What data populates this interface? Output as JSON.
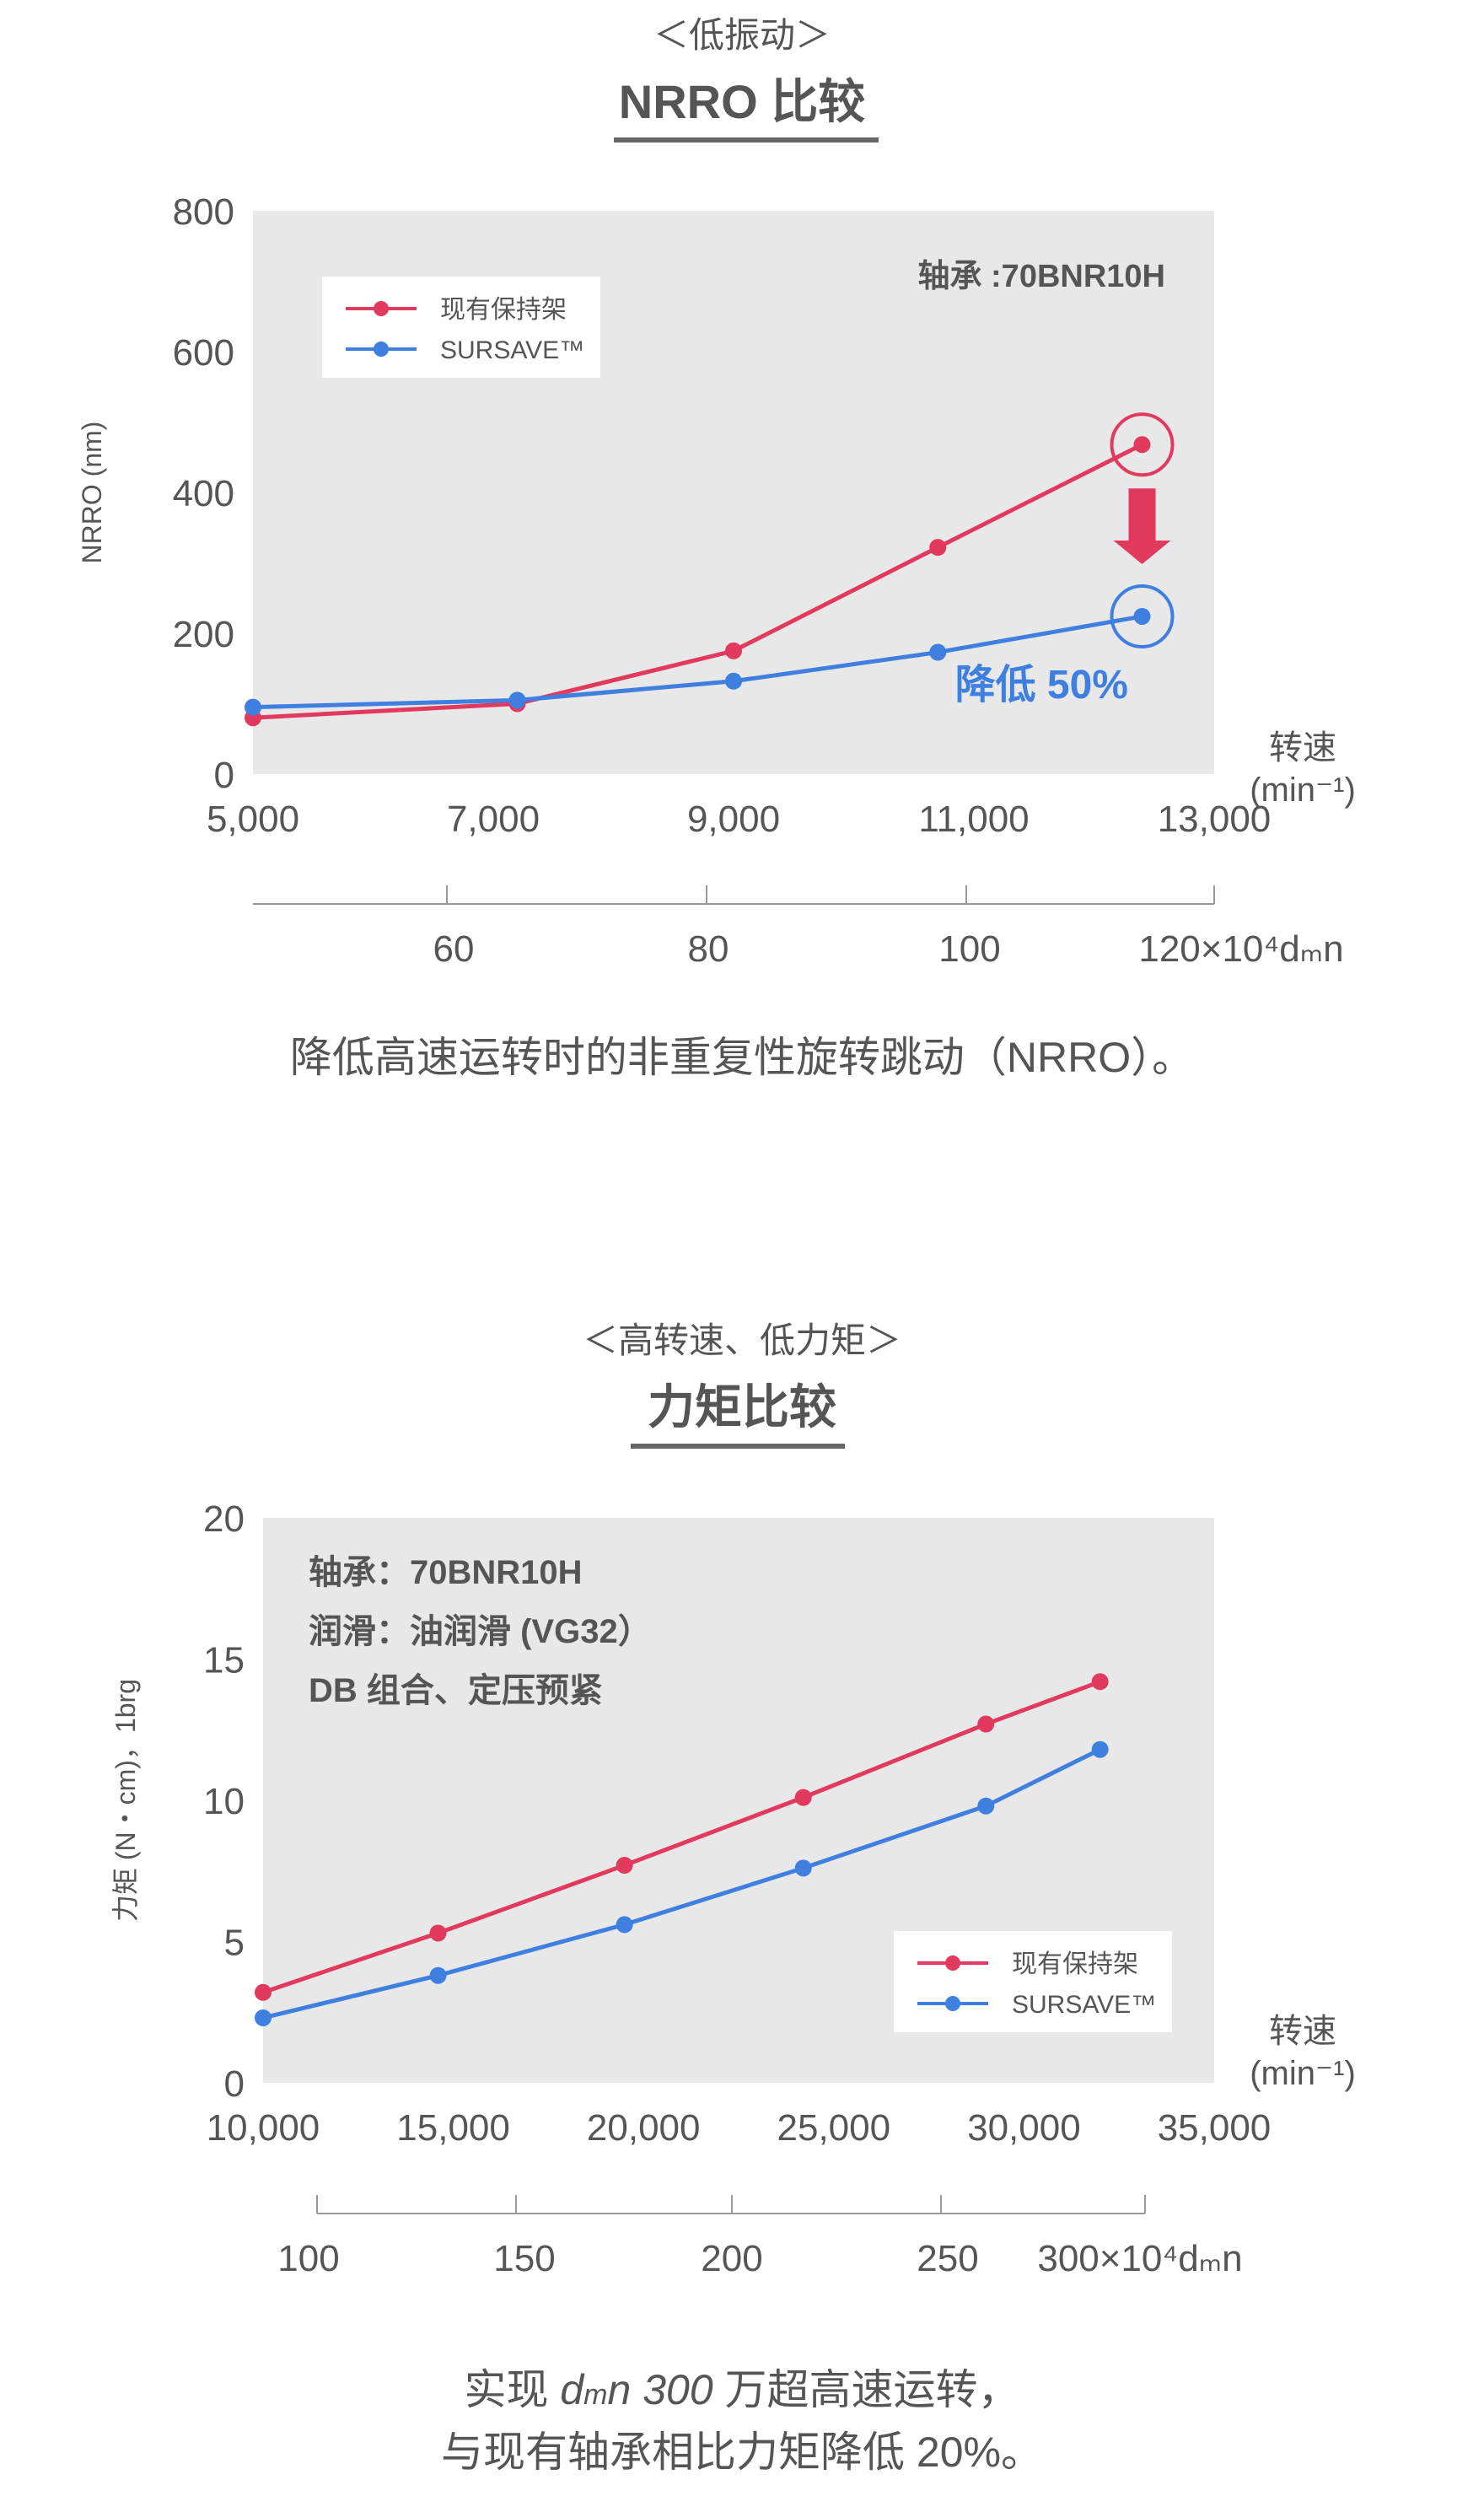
{
  "section1": {
    "subtitle": "＜低振动＞",
    "title": "NRRO 比较",
    "caption": "降低高速运转时的非重复性旋转跳动（NRRO）。"
  },
  "section2": {
    "subtitle": "＜高转速、低力矩＞",
    "title": "力矩比较",
    "caption_line2": "与现有轴承相比力矩降低 20%。",
    "caption_parts": {
      "prefix": "实现 ",
      "italic_d": "d",
      "sub_m": "m",
      "italic_n_num": "n 300",
      "suffix": " 万超高速运转，"
    }
  },
  "colors": {
    "existing": "#e23a5f",
    "sursave": "#3e7fe0",
    "plot_bg": "#e8e8e8",
    "axis_text": "#555555"
  },
  "chart_data": [
    {
      "type": "line",
      "ylabel": "NRRO (nm)",
      "xlabel_lines": [
        "转速",
        "(min⁻¹)"
      ],
      "yticks": [
        "0",
        "200",
        "400",
        "600",
        "800"
      ],
      "ylim": [
        0,
        800
      ],
      "xlim": [
        5000,
        13000
      ],
      "xticks": [
        "5,000",
        "7,000",
        "9,000",
        "11,000",
        "13,000"
      ],
      "secondary_axis": {
        "label": "120×10⁴dₘn",
        "ticks": [
          "60",
          "80",
          "100"
        ]
      },
      "annotation_bearing": "轴承 :70BNR10H",
      "reduction_label": "降低 50%",
      "legend_position": "top-left",
      "legend": [
        "现有保持架",
        "SURSAVE™"
      ],
      "series": [
        {
          "name": "现有保持架",
          "x": [
            5000,
            7200,
            9000,
            10700,
            12400
          ],
          "values": [
            80,
            100,
            175,
            322,
            468
          ]
        },
        {
          "name": "SURSAVE™",
          "x": [
            5000,
            7200,
            9000,
            10700,
            12400
          ],
          "values": [
            95,
            105,
            132,
            173,
            224
          ]
        }
      ]
    },
    {
      "type": "line",
      "ylabel": "力矩 (N・cm)，1brg",
      "xlabel_lines": [
        "转速",
        "(min⁻¹)"
      ],
      "yticks": [
        "0",
        "5",
        "10",
        "15",
        "20"
      ],
      "ylim": [
        0,
        20
      ],
      "xlim": [
        10000,
        35000
      ],
      "xticks": [
        "10,000",
        "15,000",
        "20,000",
        "25,000",
        "30,000",
        "35,000"
      ],
      "secondary_axis": {
        "label": "300×10⁴dₘn",
        "ticks": [
          "100",
          "150",
          "200",
          "250"
        ]
      },
      "annotation_lines": [
        "轴承：70BNR10H",
        "润滑：油润滑 (VG32）",
        "DB 组合、定压预紧"
      ],
      "legend_position": "bottom-right",
      "legend": [
        "现有保持架",
        "SURSAVE™"
      ],
      "series": [
        {
          "name": "现有保持架",
          "x": [
            10000,
            14600,
            19500,
            24200,
            29000,
            32000
          ],
          "values": [
            3.2,
            5.3,
            7.7,
            10.1,
            12.7,
            14.2
          ]
        },
        {
          "name": "SURSAVE™",
          "x": [
            10000,
            14600,
            19500,
            24200,
            29000,
            32000
          ],
          "values": [
            2.3,
            3.8,
            5.6,
            7.6,
            9.8,
            11.8
          ]
        }
      ]
    }
  ]
}
